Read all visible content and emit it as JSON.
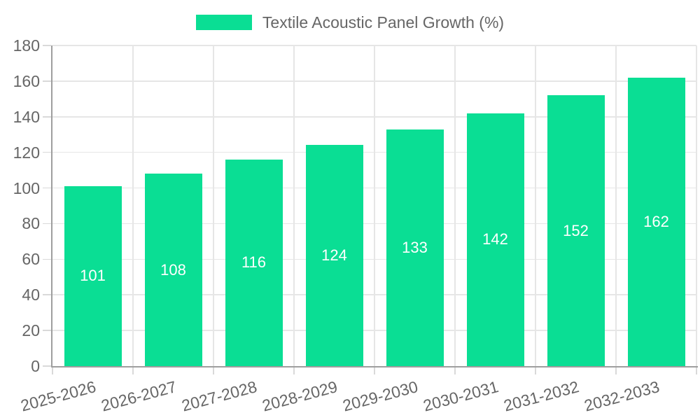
{
  "chart_data": {
    "type": "bar",
    "title": "Textile Acoustic Panel Growth (%)",
    "series_name": "Textile Acoustic Panel Growth (%)",
    "categories": [
      "2025-2026",
      "2026-2027",
      "2027-2028",
      "2028-2029",
      "2029-2030",
      "2030-2031",
      "2031-2032",
      "2032-2033"
    ],
    "values": [
      101,
      108,
      116,
      124,
      133,
      142,
      152,
      162
    ],
    "xlabel": "",
    "ylabel": "",
    "ylim": [
      0,
      180
    ],
    "yticks": [
      0,
      20,
      40,
      60,
      80,
      100,
      120,
      140,
      160,
      180
    ],
    "grid": true,
    "legend_position": "top",
    "value_labels": "inside-center",
    "colors": {
      "bar": "#0ade94",
      "value_label_text": "#ffffff",
      "axis_text": "#666666",
      "grid_line": "#e6e6e6",
      "axis_line": "#9e9e9e",
      "tick_mark": "#d9d9d9",
      "background": "#ffffff"
    }
  }
}
